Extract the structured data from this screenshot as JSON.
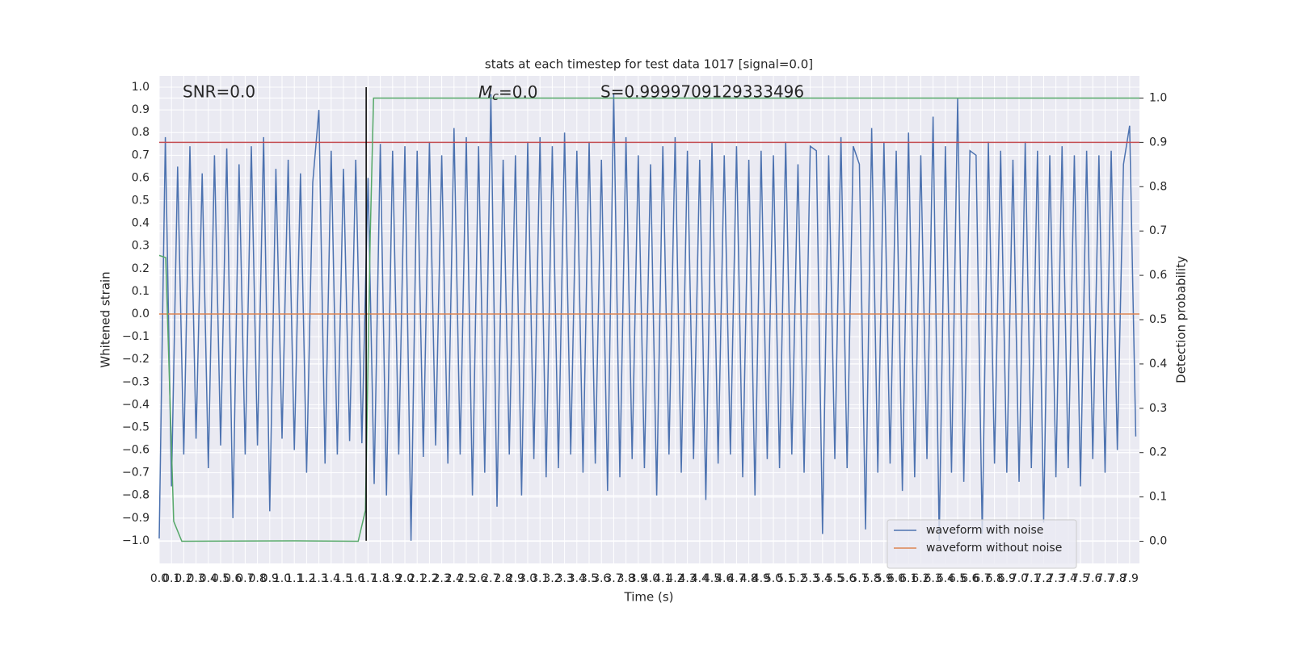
{
  "chart_data": {
    "type": "line",
    "title": "stats at each timestep for test data 1017 [signal=0.0]",
    "xlabel": "Time (s)",
    "ylabel": "Whitened strain",
    "y2label": "Detection probability",
    "annotations": [
      {
        "text": "SNR=0.0"
      },
      {
        "symbol": "M",
        "subscript": "c",
        "text": "=0.0"
      },
      {
        "text": "S=0.9999709129333496"
      }
    ],
    "xlim": [
      0,
      7.98
    ],
    "ylim": [
      -1.1,
      1.05
    ],
    "y2lim": [
      -0.05,
      1.05
    ],
    "grid": true,
    "legend": "lower right",
    "xticks": [
      {
        "value": 0,
        "label": "0.0"
      },
      0.1,
      0.2,
      0.3,
      0.4,
      0.5,
      0.6,
      0.7,
      0.8,
      0.9,
      {
        "value": 1,
        "label": "1.0"
      },
      1.1,
      1.2,
      1.3,
      1.4,
      1.5,
      1.6,
      1.7,
      1.8,
      1.9,
      {
        "value": 2,
        "label": "2.0"
      },
      2.1,
      2.2,
      2.3,
      2.4,
      2.5,
      2.6,
      2.7,
      2.8,
      2.9,
      {
        "value": 3,
        "label": "3.0"
      },
      3.1,
      3.2,
      3.3,
      3.4,
      3.5,
      3.6,
      3.7,
      3.8,
      3.9,
      {
        "value": 4,
        "label": "4.0"
      },
      4.1,
      4.2,
      4.3,
      4.4,
      4.5,
      4.6,
      4.7,
      4.8,
      4.9,
      {
        "value": 5,
        "label": "5.0"
      },
      5.1,
      5.2,
      5.3,
      5.4,
      5.5,
      5.6,
      5.7,
      5.8,
      5.9,
      {
        "value": 6,
        "label": "6.0"
      },
      6.1,
      6.2,
      6.3,
      6.4,
      6.5,
      6.6,
      6.7,
      6.8,
      6.9,
      {
        "value": 7,
        "label": "7.0"
      },
      7.1,
      7.2,
      7.3,
      7.4,
      7.5,
      7.6,
      7.7,
      7.8,
      7.9
    ],
    "yticks": [
      {
        "value": -1,
        "label": "−1.0"
      },
      {
        "value": -0.9,
        "label": "−0.9"
      },
      {
        "value": -0.8,
        "label": "−0.8"
      },
      {
        "value": -0.7,
        "label": "−0.7"
      },
      {
        "value": -0.6,
        "label": "−0.6"
      },
      {
        "value": -0.5,
        "label": "−0.5"
      },
      {
        "value": -0.4,
        "label": "−0.4"
      },
      {
        "value": -0.3,
        "label": "−0.3"
      },
      {
        "value": -0.2,
        "label": "−0.2"
      },
      {
        "value": -0.1,
        "label": "−0.1"
      },
      {
        "value": 0,
        "label": "0.0"
      },
      0.1,
      0.2,
      0.3,
      0.4,
      0.5,
      0.6,
      0.7,
      0.8,
      0.9,
      {
        "value": 1,
        "label": "1.0"
      }
    ],
    "y2ticks": [
      {
        "value": 0,
        "label": "0.0"
      },
      0.1,
      0.2,
      0.3,
      0.4,
      0.5,
      0.6,
      0.7,
      0.8,
      0.9,
      {
        "value": 1,
        "label": "1.0"
      }
    ],
    "series": [
      {
        "name": "waveform with noise",
        "color": "#4c72b0",
        "x": [
          0,
          0.05,
          0.1,
          0.15,
          0.2,
          0.25,
          0.3,
          0.35,
          0.4,
          0.45,
          0.5,
          0.55,
          0.6,
          0.65,
          0.7,
          0.75,
          0.8,
          0.85,
          0.9,
          0.95,
          1,
          1.05,
          1.1,
          1.15,
          1.2,
          1.25,
          1.3,
          1.35,
          1.4,
          1.45,
          1.5,
          1.55,
          1.6,
          1.65,
          1.7,
          1.75,
          1.8,
          1.85,
          1.9,
          1.95,
          2,
          2.05,
          2.1,
          2.15,
          2.2,
          2.25,
          2.3,
          2.35,
          2.4,
          2.45,
          2.5,
          2.55,
          2.6,
          2.65,
          2.7,
          2.75,
          2.8,
          2.85,
          2.9,
          2.95,
          3,
          3.05,
          3.1,
          3.15,
          3.2,
          3.25,
          3.3,
          3.35,
          3.4,
          3.45,
          3.5,
          3.55,
          3.6,
          3.65,
          3.7,
          3.75,
          3.8,
          3.85,
          3.9,
          3.95,
          4,
          4.05,
          4.1,
          4.15,
          4.2,
          4.25,
          4.3,
          4.35,
          4.4,
          4.45,
          4.5,
          4.55,
          4.6,
          4.65,
          4.7,
          4.75,
          4.8,
          4.85,
          4.9,
          4.95,
          5,
          5.05,
          5.1,
          5.15,
          5.2,
          5.25,
          5.3,
          5.35,
          5.4,
          5.45,
          5.5,
          5.55,
          5.6,
          5.65,
          5.7,
          5.75,
          5.8,
          5.85,
          5.9,
          5.95,
          6,
          6.05,
          6.1,
          6.15,
          6.2,
          6.25,
          6.3,
          6.35,
          6.4,
          6.45,
          6.5,
          6.55,
          6.6,
          6.65,
          6.7,
          6.75,
          6.8,
          6.85,
          6.9,
          6.95,
          7,
          7.05,
          7.1,
          7.15,
          7.2,
          7.25,
          7.3,
          7.35,
          7.4,
          7.45,
          7.5,
          7.55,
          7.6,
          7.65,
          7.7,
          7.75,
          7.8,
          7.85,
          7.9,
          7.95
        ],
        "values": [
          -0.99,
          0.78,
          -0.76,
          0.65,
          -0.62,
          0.74,
          -0.55,
          0.62,
          -0.68,
          0.7,
          -0.58,
          0.73,
          -0.9,
          0.66,
          -0.62,
          0.74,
          -0.58,
          0.78,
          -0.87,
          0.64,
          -0.55,
          0.68,
          -0.6,
          0.62,
          -0.7,
          0.58,
          0.9,
          -0.66,
          0.72,
          -0.62,
          0.64,
          -0.56,
          0.68,
          -0.57,
          0.6,
          -0.75,
          0.75,
          -0.8,
          0.72,
          -0.62,
          0.74,
          -1.0,
          0.72,
          -0.63,
          0.76,
          -0.58,
          0.7,
          -0.66,
          0.82,
          -0.62,
          0.78,
          -0.8,
          0.74,
          -0.7,
          0.97,
          -0.85,
          0.68,
          -0.62,
          0.7,
          -0.8,
          0.76,
          -0.64,
          0.78,
          -0.72,
          0.74,
          -0.68,
          0.8,
          -0.62,
          0.72,
          -0.7,
          0.76,
          -0.66,
          0.68,
          -0.78,
          0.97,
          -0.72,
          0.78,
          -0.64,
          0.7,
          -0.68,
          0.66,
          -0.8,
          0.74,
          -0.62,
          0.78,
          -0.7,
          0.72,
          -0.64,
          0.68,
          -0.82,
          0.76,
          -0.66,
          0.7,
          -0.62,
          0.74,
          -0.72,
          0.68,
          -0.8,
          0.72,
          -0.64,
          0.7,
          -0.68,
          0.76,
          -0.62,
          0.66,
          -0.7,
          0.74,
          0.72,
          -0.97,
          0.7,
          -0.64,
          0.78,
          -0.68,
          0.74,
          0.66,
          -0.95,
          0.82,
          -0.7,
          0.76,
          -0.66,
          0.72,
          -0.78,
          0.8,
          -0.72,
          0.7,
          -0.64,
          0.87,
          -1.0,
          0.74,
          -0.7,
          0.95,
          -0.74,
          0.72,
          0.7,
          -0.97,
          0.76,
          -0.66,
          0.72,
          -0.7,
          0.68,
          -0.74,
          0.76,
          -0.68,
          0.72,
          -0.92,
          0.7,
          -0.72,
          0.74,
          -0.68,
          0.7,
          -0.76,
          0.72,
          -0.64,
          0.7,
          -0.7,
          0.72,
          -0.6,
          0.66,
          0.83,
          -0.54
        ]
      },
      {
        "name": "waveform without noise",
        "color": "#dd8452",
        "x": [
          0,
          7.98
        ],
        "values": [
          0,
          0
        ]
      }
    ],
    "probability": {
      "color": "#55a868",
      "x": [
        0,
        0.053,
        0.118,
        0.184,
        1.106,
        1.62,
        1.679,
        1.718,
        1.745,
        7.98
      ],
      "values": [
        0.645,
        0.64,
        0.045,
        0,
        0.001,
        0,
        0.07,
        0.69,
        1,
        1
      ]
    },
    "threshold": {
      "value": 0.9,
      "color": "#c44e52"
    },
    "vline": {
      "value": 1.685,
      "color": "#000000"
    }
  }
}
